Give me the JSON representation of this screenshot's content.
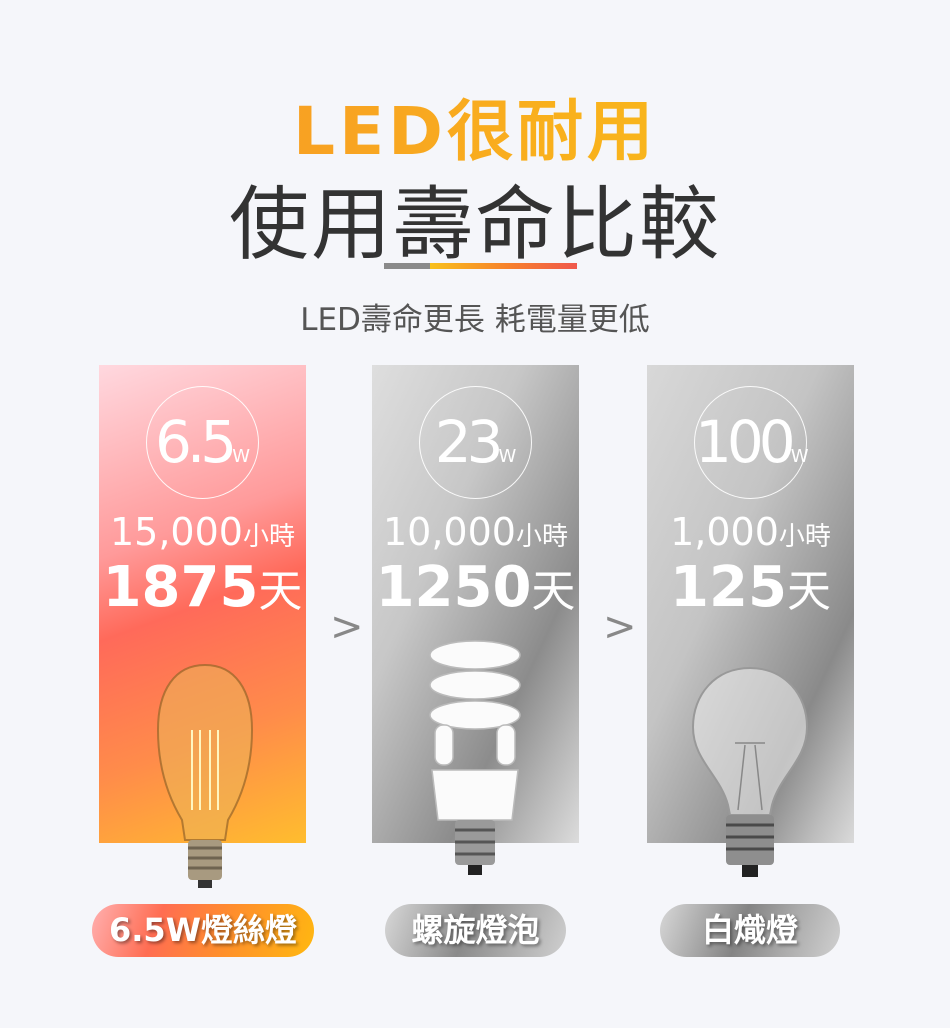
{
  "header": {
    "title_accent": "LED很耐用",
    "title_main": "使用壽命比較",
    "subtitle": "LED壽命更長 耗電量更低"
  },
  "colors": {
    "accent_orange": "#f7902a",
    "accent_red": "#f0584c",
    "text_dark": "#333333"
  },
  "products": [
    {
      "watt": "6.5",
      "watt_unit": "W",
      "hours": "15,000",
      "hours_unit": "小時",
      "days": "1875",
      "days_unit": "天",
      "label": "6.5W燈絲燈",
      "icon": "filament-bulb-icon"
    },
    {
      "watt": "23",
      "watt_unit": "W",
      "hours": "10,000",
      "hours_unit": "小時",
      "days": "1250",
      "days_unit": "天",
      "label": "螺旋燈泡",
      "icon": "spiral-bulb-icon"
    },
    {
      "watt": "100",
      "watt_unit": "W",
      "hours": "1,000",
      "hours_unit": "小時",
      "days": "125",
      "days_unit": "天",
      "label": "白熾燈",
      "icon": "incandescent-bulb-icon"
    }
  ],
  "comparison_symbol": ">"
}
